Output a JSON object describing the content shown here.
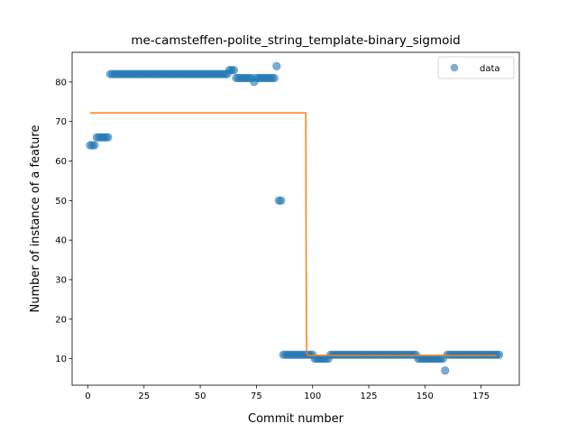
{
  "chart_data": {
    "type": "scatter",
    "title": "me-camsteffen-polite_string_template-binary_sigmoid",
    "xlabel": "Commit number",
    "ylabel": "Number of instance of a feature",
    "xlim": [
      -7,
      192
    ],
    "ylim": [
      3.3,
      87.5
    ],
    "xticks": [
      0,
      25,
      50,
      75,
      100,
      125,
      150,
      175
    ],
    "yticks": [
      10,
      20,
      30,
      40,
      50,
      60,
      70,
      80
    ],
    "grid": false,
    "legend": {
      "placement": "top-right",
      "entries": [
        "data"
      ]
    },
    "colors": {
      "data": "#1f77b4",
      "fit": "#ff7f0e"
    },
    "series": [
      {
        "name": "data",
        "kind": "scatter",
        "segments": [
          {
            "x_start": 1,
            "x_end": 3,
            "y": 64
          },
          {
            "x_start": 4,
            "x_end": 9,
            "y": 66
          },
          {
            "x_start": 10,
            "x_end": 62,
            "y": 82
          },
          {
            "x_start": 63,
            "x_end": 65,
            "y": 83
          },
          {
            "x_start": 66,
            "x_end": 73,
            "y": 81
          },
          {
            "x_start": 74,
            "x_end": 74,
            "y": 80
          },
          {
            "x_start": 75,
            "x_end": 83,
            "y": 81
          },
          {
            "x_start": 84,
            "x_end": 84,
            "y": 84
          },
          {
            "x_start": 85,
            "x_end": 86,
            "y": 50
          },
          {
            "x_start": 87,
            "x_end": 100,
            "y": 11
          },
          {
            "x_start": 101,
            "x_end": 107,
            "y": 10
          },
          {
            "x_start": 108,
            "x_end": 146,
            "y": 11
          },
          {
            "x_start": 147,
            "x_end": 158,
            "y": 10
          },
          {
            "x_start": 159,
            "x_end": 159,
            "y": 7
          },
          {
            "x_start": 160,
            "x_end": 183,
            "y": 11
          }
        ]
      },
      {
        "kind": "line",
        "x": [
          1,
          97,
          97.1,
          97.3,
          98,
          182
        ],
        "y": [
          72.2,
          72.2,
          40,
          11.5,
          10.8,
          10.8
        ]
      }
    ]
  }
}
